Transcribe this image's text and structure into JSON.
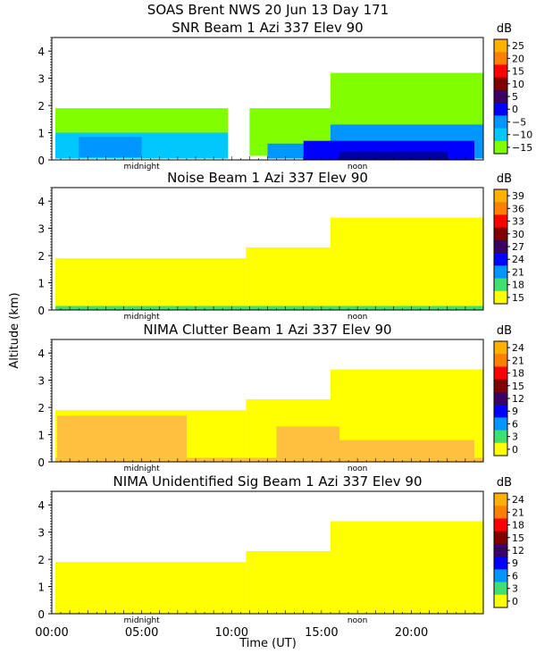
{
  "figure": {
    "title_line1": "SOAS Brent NWS  20 Jun 13 Day 171",
    "ylabel": "Altitude (km)",
    "xlabel": "Time (UT)",
    "x_tick_labels": [
      "00:00",
      "05:00",
      "10:00",
      "15:00",
      "20:00"
    ],
    "x_ticks_hours": [
      0,
      5,
      10,
      15,
      20
    ],
    "xlim_hours": [
      0,
      24
    ],
    "ylim_km": [
      0,
      4.5
    ],
    "y_tick_labels": [
      "0",
      "1",
      "2",
      "3",
      "4"
    ],
    "midnight_label": "midnight",
    "noon_label": "noon",
    "midnight_hour": 5,
    "noon_hour": 17
  },
  "colors": {
    "yellow": "#ffff00",
    "green": "#80ff00",
    "mint": "#40e070",
    "cyan": "#00c8ff",
    "lightblue": "#0096ff",
    "blue": "#0000ff",
    "darkblue": "#0000a0",
    "purple": "#3c0064",
    "maroon": "#800000",
    "red": "#ff0000",
    "orange": "#ff8000",
    "lightorange": "#ffb000",
    "sand": "#ffc040"
  },
  "chart_data": [
    {
      "type": "heatmap",
      "title": "SNR Beam 1 Azi 337 Elev 90",
      "unit": "dB",
      "colorbar_ticks": [
        "25",
        "20",
        "15",
        "10",
        "5",
        "0",
        "−5",
        "−10",
        "−15"
      ],
      "colorbar_colors": [
        "#ffb000",
        "#ff8000",
        "#ff0000",
        "#800000",
        "#3c0064",
        "#0000ff",
        "#0096ff",
        "#00c8ff",
        "#80ff00"
      ],
      "regions": [
        {
          "x": [
            0.2,
            9.8
          ],
          "y": [
            0.15,
            1.9
          ],
          "color": "green"
        },
        {
          "x": [
            11.0,
            16.0
          ],
          "y": [
            0.15,
            1.9
          ],
          "color": "green"
        },
        {
          "x": [
            15.5,
            24.0
          ],
          "y": [
            0.15,
            3.2
          ],
          "color": "green"
        },
        {
          "x": [
            0.2,
            9.8
          ],
          "y": [
            0.05,
            1.0
          ],
          "color": "cyan"
        },
        {
          "x": [
            1.5,
            5.0
          ],
          "y": [
            0.1,
            0.85
          ],
          "color": "lightblue"
        },
        {
          "x": [
            12.0,
            15.5
          ],
          "y": [
            0.05,
            0.6
          ],
          "color": "lightblue"
        },
        {
          "x": [
            15.5,
            24.0
          ],
          "y": [
            0.05,
            1.3
          ],
          "color": "lightblue"
        },
        {
          "x": [
            14.0,
            23.5
          ],
          "y": [
            0.0,
            0.7
          ],
          "color": "blue"
        },
        {
          "x": [
            16.0,
            22.0
          ],
          "y": [
            0.0,
            0.3
          ],
          "color": "darkblue"
        }
      ]
    },
    {
      "type": "heatmap",
      "title": "Noise Beam 1 Azi 337 Elev 90",
      "unit": "dB",
      "colorbar_ticks": [
        "39",
        "36",
        "33",
        "30",
        "27",
        "24",
        "21",
        "18",
        "15"
      ],
      "colorbar_colors": [
        "#ffb000",
        "#ff8000",
        "#ff0000",
        "#800000",
        "#3c0064",
        "#0000ff",
        "#0096ff",
        "#40e070",
        "#ffff00"
      ],
      "regions": [
        {
          "x": [
            0.2,
            10.8
          ],
          "y": [
            0.0,
            1.9
          ],
          "color": "yellow"
        },
        {
          "x": [
            10.8,
            24.0
          ],
          "y": [
            0.0,
            2.3
          ],
          "color": "yellow"
        },
        {
          "x": [
            15.5,
            24.0
          ],
          "y": [
            0.0,
            3.4
          ],
          "color": "yellow"
        },
        {
          "x": [
            0.2,
            24.0
          ],
          "y": [
            0.0,
            0.15
          ],
          "color": "mint"
        }
      ]
    },
    {
      "type": "heatmap",
      "title": "NIMA Clutter Beam 1 Azi 337 Elev 90",
      "unit": "dB",
      "colorbar_ticks": [
        "24",
        "21",
        "18",
        "15",
        "12",
        "9",
        "6",
        "3",
        "0"
      ],
      "colorbar_colors": [
        "#ffb000",
        "#ff8000",
        "#ff0000",
        "#800000",
        "#3c0064",
        "#0000ff",
        "#0096ff",
        "#40e070",
        "#ffff00"
      ],
      "regions": [
        {
          "x": [
            0.2,
            10.8
          ],
          "y": [
            0.0,
            1.9
          ],
          "color": "yellow"
        },
        {
          "x": [
            10.8,
            24.0
          ],
          "y": [
            0.0,
            2.3
          ],
          "color": "yellow"
        },
        {
          "x": [
            15.5,
            24.0
          ],
          "y": [
            0.0,
            3.4
          ],
          "color": "yellow"
        },
        {
          "x": [
            0.3,
            7.5
          ],
          "y": [
            0.05,
            1.7
          ],
          "color": "sand"
        },
        {
          "x": [
            12.5,
            16.0
          ],
          "y": [
            0.05,
            1.3
          ],
          "color": "sand"
        },
        {
          "x": [
            16.0,
            23.5
          ],
          "y": [
            0.05,
            0.8
          ],
          "color": "sand"
        },
        {
          "x": [
            0.2,
            24.0
          ],
          "y": [
            0.0,
            0.15
          ],
          "color": "sand"
        }
      ]
    },
    {
      "type": "heatmap",
      "title": "NIMA Unidentified Sig Beam 1 Azi 337 Elev 90",
      "unit": "dB",
      "colorbar_ticks": [
        "24",
        "21",
        "18",
        "15",
        "12",
        "9",
        "6",
        "3",
        "0"
      ],
      "colorbar_colors": [
        "#ffb000",
        "#ff8000",
        "#ff0000",
        "#800000",
        "#3c0064",
        "#0000ff",
        "#0096ff",
        "#40e070",
        "#ffff00"
      ],
      "regions": [
        {
          "x": [
            0.2,
            10.8
          ],
          "y": [
            0.0,
            1.9
          ],
          "color": "yellow"
        },
        {
          "x": [
            10.8,
            24.0
          ],
          "y": [
            0.0,
            2.3
          ],
          "color": "yellow"
        },
        {
          "x": [
            15.5,
            24.0
          ],
          "y": [
            0.0,
            3.4
          ],
          "color": "yellow"
        }
      ]
    }
  ]
}
